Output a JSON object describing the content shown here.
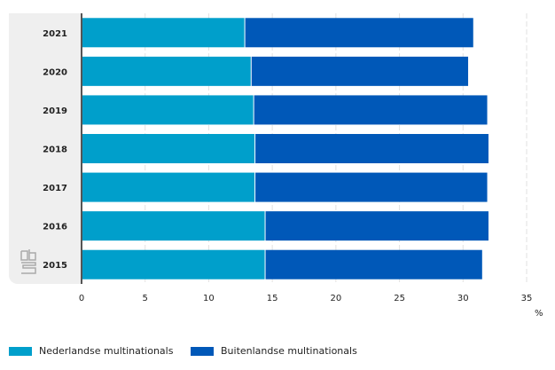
{
  "chart_data": {
    "type": "bar",
    "orientation": "horizontal",
    "stacked": true,
    "categories": [
      "2021",
      "2020",
      "2019",
      "2018",
      "2017",
      "2016",
      "2015"
    ],
    "series": [
      {
        "name": "Nederlandse multinationals",
        "color": "#009fcb",
        "values": [
          12.8,
          13.3,
          13.5,
          13.6,
          13.6,
          14.4,
          14.4
        ]
      },
      {
        "name": "Buitenlandse multinationals",
        "color": "#0058b8",
        "values": [
          18.0,
          17.1,
          18.4,
          18.4,
          18.3,
          17.6,
          17.1
        ]
      }
    ],
    "xlim": [
      0,
      35
    ],
    "xticks": [
      "0",
      "5",
      "10",
      "15",
      "20",
      "25",
      "30",
      "35"
    ],
    "xlabel": "%",
    "grid": true,
    "legend": "bottom-left"
  }
}
